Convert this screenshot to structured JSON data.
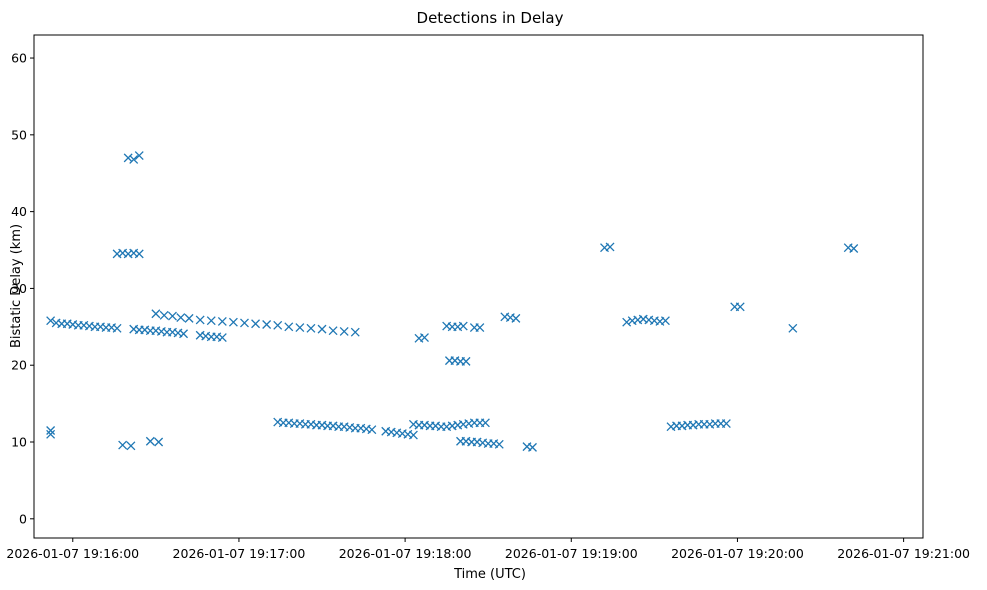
{
  "chart_data": {
    "type": "scatter",
    "title": "Detections in Delay",
    "xlabel": "Time (UTC)",
    "ylabel": "Bistatic Delay (km)",
    "marker": "x",
    "color": "#1f77b4",
    "grid": false,
    "xlim": [
      "2026-01-07 19:15:46",
      "2026-01-07 19:21:07"
    ],
    "ylim": [
      -2.5,
      63
    ],
    "x_ticks": [
      "2026-01-07 19:16:00",
      "2026-01-07 19:17:00",
      "2026-01-07 19:18:00",
      "2026-01-07 19:19:00",
      "2026-01-07 19:20:00",
      "2026-01-07 19:21:00"
    ],
    "y_ticks": [
      "0",
      "10",
      "20",
      "30",
      "40",
      "50",
      "60"
    ],
    "series": [
      {
        "points": [
          [
            "19:15:52",
            25.8
          ],
          [
            "19:15:54",
            25.5
          ],
          [
            "19:15:56",
            25.4
          ],
          [
            "19:15:58",
            25.4
          ],
          [
            "19:16:00",
            25.3
          ],
          [
            "19:16:02",
            25.2
          ],
          [
            "19:16:04",
            25.2
          ],
          [
            "19:16:06",
            25.1
          ],
          [
            "19:16:08",
            25.0
          ],
          [
            "19:16:10",
            25.0
          ],
          [
            "19:16:12",
            24.9
          ],
          [
            "19:16:14",
            24.9
          ],
          [
            "19:16:16",
            24.8
          ],
          [
            "19:16:22",
            24.7
          ],
          [
            "19:16:24",
            24.6
          ],
          [
            "19:16:26",
            24.6
          ],
          [
            "19:16:28",
            24.5
          ],
          [
            "19:16:30",
            24.5
          ],
          [
            "19:16:32",
            24.4
          ],
          [
            "19:16:34",
            24.3
          ],
          [
            "19:16:36",
            24.3
          ],
          [
            "19:16:38",
            24.2
          ],
          [
            "19:16:40",
            24.1
          ],
          [
            "19:16:30",
            26.7
          ],
          [
            "19:16:33",
            26.5
          ],
          [
            "19:16:36",
            26.4
          ],
          [
            "19:16:39",
            26.2
          ],
          [
            "19:16:42",
            26.1
          ],
          [
            "19:16:46",
            25.9
          ],
          [
            "19:16:50",
            25.8
          ],
          [
            "19:16:54",
            25.7
          ],
          [
            "19:16:58",
            25.6
          ],
          [
            "19:17:02",
            25.5
          ],
          [
            "19:17:06",
            25.4
          ],
          [
            "19:17:10",
            25.3
          ],
          [
            "19:17:14",
            25.2
          ],
          [
            "19:17:18",
            25.0
          ],
          [
            "19:17:22",
            24.9
          ],
          [
            "19:17:26",
            24.8
          ],
          [
            "19:17:30",
            24.7
          ],
          [
            "19:17:34",
            24.5
          ],
          [
            "19:17:38",
            24.4
          ],
          [
            "19:17:42",
            24.3
          ],
          [
            "19:16:46",
            23.9
          ],
          [
            "19:16:48",
            23.8
          ],
          [
            "19:16:50",
            23.7
          ],
          [
            "19:16:52",
            23.7
          ],
          [
            "19:16:54",
            23.6
          ],
          [
            "19:17:14",
            12.6
          ],
          [
            "19:17:16",
            12.5
          ],
          [
            "19:17:18",
            12.5
          ],
          [
            "19:17:20",
            12.4
          ],
          [
            "19:17:22",
            12.4
          ],
          [
            "19:17:24",
            12.3
          ],
          [
            "19:17:26",
            12.3
          ],
          [
            "19:17:28",
            12.2
          ],
          [
            "19:17:30",
            12.2
          ],
          [
            "19:17:32",
            12.1
          ],
          [
            "19:17:34",
            12.1
          ],
          [
            "19:17:36",
            12.0
          ],
          [
            "19:17:38",
            12.0
          ],
          [
            "19:17:40",
            11.9
          ],
          [
            "19:17:42",
            11.8
          ],
          [
            "19:17:44",
            11.8
          ],
          [
            "19:17:46",
            11.7
          ],
          [
            "19:17:48",
            11.6
          ],
          [
            "19:17:53",
            11.4
          ],
          [
            "19:17:55",
            11.3
          ],
          [
            "19:17:57",
            11.2
          ],
          [
            "19:17:59",
            11.1
          ],
          [
            "19:18:01",
            11.0
          ],
          [
            "19:18:03",
            10.9
          ],
          [
            "19:18:03",
            12.3
          ],
          [
            "19:18:05",
            12.2
          ],
          [
            "19:18:07",
            12.2
          ],
          [
            "19:18:09",
            12.1
          ],
          [
            "19:18:11",
            12.1
          ],
          [
            "19:18:13",
            12.0
          ],
          [
            "19:18:15",
            12.0
          ],
          [
            "19:18:17",
            12.1
          ],
          [
            "19:18:19",
            12.2
          ],
          [
            "19:18:21",
            12.3
          ],
          [
            "19:18:23",
            12.4
          ],
          [
            "19:18:25",
            12.5
          ],
          [
            "19:18:27",
            12.5
          ],
          [
            "19:18:29",
            12.5
          ],
          [
            "19:18:05",
            23.5
          ],
          [
            "19:18:07",
            23.6
          ],
          [
            "19:18:16",
            20.6
          ],
          [
            "19:18:18",
            20.6
          ],
          [
            "19:18:20",
            20.5
          ],
          [
            "19:18:22",
            20.5
          ],
          [
            "19:18:15",
            25.1
          ],
          [
            "19:18:17",
            25.0
          ],
          [
            "19:18:19",
            25.0
          ],
          [
            "19:18:21",
            25.1
          ],
          [
            "19:18:25",
            24.9
          ],
          [
            "19:18:27",
            24.9
          ],
          [
            "19:18:20",
            10.1
          ],
          [
            "19:18:22",
            10.1
          ],
          [
            "19:18:24",
            10.0
          ],
          [
            "19:18:26",
            10.0
          ],
          [
            "19:18:28",
            9.9
          ],
          [
            "19:18:30",
            9.8
          ],
          [
            "19:18:32",
            9.8
          ],
          [
            "19:18:34",
            9.7
          ],
          [
            "19:18:44",
            9.4
          ],
          [
            "19:18:46",
            9.3
          ],
          [
            "19:18:36",
            26.3
          ],
          [
            "19:18:38",
            26.2
          ],
          [
            "19:18:40",
            26.1
          ],
          [
            "19:19:20",
            25.6
          ],
          [
            "19:19:22",
            25.8
          ],
          [
            "19:19:24",
            25.9
          ],
          [
            "19:19:26",
            26.0
          ],
          [
            "19:19:28",
            25.9
          ],
          [
            "19:19:30",
            25.8
          ],
          [
            "19:19:32",
            25.7
          ],
          [
            "19:19:34",
            25.8
          ],
          [
            "19:19:36",
            12.0
          ],
          [
            "19:19:38",
            12.1
          ],
          [
            "19:19:40",
            12.1
          ],
          [
            "19:19:42",
            12.2
          ],
          [
            "19:19:44",
            12.2
          ],
          [
            "19:19:46",
            12.3
          ],
          [
            "19:19:48",
            12.3
          ],
          [
            "19:19:50",
            12.3
          ],
          [
            "19:19:52",
            12.4
          ],
          [
            "19:19:54",
            12.4
          ],
          [
            "19:19:56",
            12.4
          ],
          [
            "19:19:59",
            27.6
          ],
          [
            "19:20:01",
            27.6
          ],
          [
            "19:20:20",
            24.8
          ],
          [
            "19:16:16",
            34.5
          ],
          [
            "19:16:18",
            34.6
          ],
          [
            "19:16:20",
            34.5
          ],
          [
            "19:16:22",
            34.6
          ],
          [
            "19:16:24",
            34.5
          ],
          [
            "19:16:20",
            47.0
          ],
          [
            "19:16:22",
            46.8
          ],
          [
            "19:16:24",
            47.3
          ],
          [
            "19:15:52",
            11.0
          ],
          [
            "19:15:52",
            11.5
          ],
          [
            "19:16:18",
            9.6
          ],
          [
            "19:16:21",
            9.5
          ],
          [
            "19:16:28",
            10.1
          ],
          [
            "19:16:31",
            10.0
          ],
          [
            "19:19:12",
            35.3
          ],
          [
            "19:19:14",
            35.4
          ],
          [
            "19:20:40",
            35.3
          ],
          [
            "19:20:42",
            35.2
          ]
        ]
      }
    ]
  }
}
